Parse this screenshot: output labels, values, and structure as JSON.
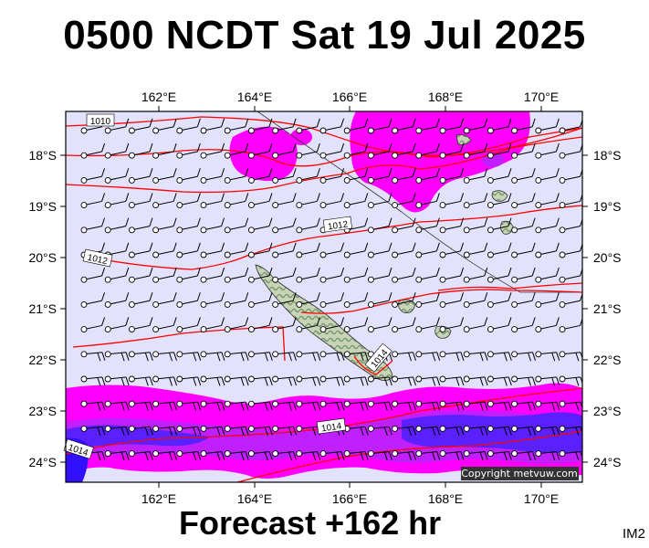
{
  "header": {
    "title": "0500 NCDT Sat 19 Jul 2025"
  },
  "footer": {
    "forecast": "Forecast +162 hr",
    "image_id": "IM2"
  },
  "map": {
    "lon_labels": [
      "162°E",
      "164°E",
      "166°E",
      "168°E",
      "170°E"
    ],
    "lat_labels": [
      "18°S",
      "19°S",
      "20°S",
      "21°S",
      "22°S",
      "23°S",
      "24°S"
    ],
    "isobar_labels": [
      "1010",
      "1012",
      "1012",
      "1014",
      "1014",
      "1014"
    ],
    "copyright": "Copyright metvuw.com",
    "colors": {
      "background": "#e2e2fc",
      "rain_light": "#ff00ff",
      "rain_medium": "#c020ff",
      "rain_heavy": "#5a20ff",
      "isobar": "#ff0000",
      "land": "#c8d4b8"
    }
  }
}
